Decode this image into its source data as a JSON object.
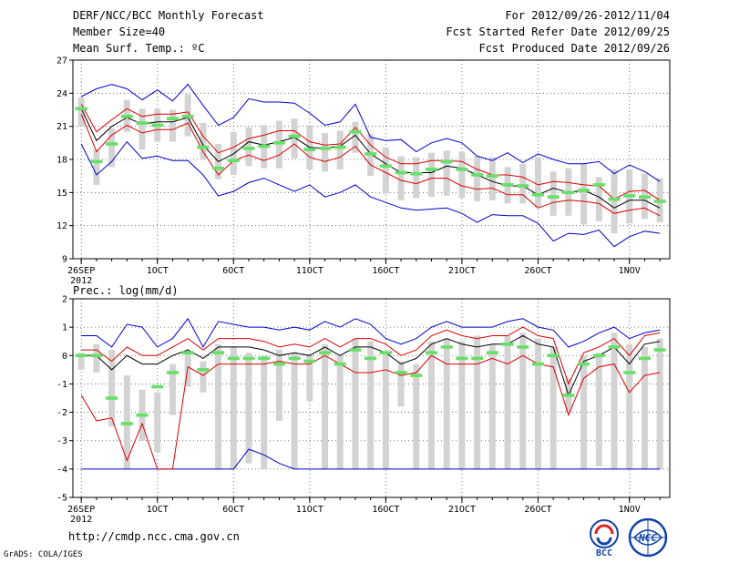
{
  "header": {
    "title": "DERF/NCC/BCC Monthly Forecast",
    "member_size": "Member Size=40",
    "variable": "Mean Surf. Temp.: ºC",
    "period": "For 2012/09/26-2012/11/04",
    "start_date": "Fcst Started Refer Date 2012/09/25",
    "produced_date": "Fcst Produced Date 2012/09/26"
  },
  "footer": {
    "url": "http://cmdp.ncc.cma.gov.cn",
    "grads": "GrADS: COLA/IGES",
    "logo_bcc_text": "BCC",
    "logo_ncc_text": "NCC"
  },
  "colors": {
    "box": "#d3d3d3",
    "median": "#66e066",
    "mean": "#000000",
    "inner": "#dd0000",
    "outer": "#0000cc",
    "grid": "#555555"
  },
  "chart_data": [
    {
      "type": "box-plume",
      "title": "Mean Surf. Temp.: ºC",
      "ylim": [
        9,
        27
      ],
      "yticks": [
        "9",
        "12",
        "15",
        "18",
        "21",
        "24",
        "27"
      ],
      "xlabels": [
        "26SEP",
        "1OCT",
        "6OCT",
        "11OCT",
        "16OCT",
        "21OCT",
        "26OCT",
        "1NOV"
      ],
      "xlabel_year": "2012",
      "mean": [
        22.6,
        19.7,
        21.0,
        21.8,
        21.2,
        21.4,
        21.4,
        21.8,
        19.3,
        17.8,
        18.5,
        19.6,
        19.3,
        19.6,
        20.0,
        19.1,
        19.0,
        19.2,
        20.2,
        18.5,
        17.6,
        16.8,
        16.8,
        16.8,
        17.4,
        17.2,
        16.6,
        16.0,
        15.6,
        15.6,
        14.8,
        15.4,
        15.0,
        15.2,
        14.6,
        13.6,
        14.3,
        14.3,
        13.6
      ],
      "upper_inner": [
        23.0,
        20.5,
        21.6,
        22.6,
        21.9,
        22.1,
        22.1,
        22.3,
        20.1,
        18.6,
        19.1,
        19.9,
        20.2,
        20.6,
        20.6,
        19.6,
        19.3,
        19.4,
        20.9,
        19.3,
        18.2,
        17.6,
        17.6,
        17.9,
        17.9,
        17.8,
        17.1,
        16.6,
        16.6,
        16.4,
        15.7,
        16.0,
        15.9,
        15.7,
        15.6,
        14.4,
        15.1,
        15.2,
        14.3
      ],
      "lower_inner": [
        22.1,
        18.7,
        20.2,
        21.1,
        20.4,
        20.7,
        20.7,
        21.3,
        18.7,
        16.6,
        17.9,
        18.4,
        17.9,
        18.4,
        19.4,
        18.2,
        17.8,
        18.2,
        19.2,
        17.5,
        16.8,
        16.1,
        15.8,
        16.3,
        16.3,
        15.6,
        15.3,
        15.4,
        14.8,
        14.8,
        13.6,
        14.1,
        14.3,
        14.2,
        14.0,
        13.1,
        13.4,
        13.6,
        12.9
      ],
      "upper_outer": [
        23.7,
        24.4,
        24.8,
        24.4,
        23.4,
        24.3,
        23.3,
        24.8,
        22.9,
        21.1,
        21.8,
        23.5,
        23.2,
        23.2,
        23.1,
        22.2,
        21.1,
        21.4,
        23.0,
        20.0,
        19.7,
        19.8,
        18.7,
        19.5,
        19.9,
        19.5,
        18.3,
        17.9,
        18.6,
        17.7,
        18.5,
        18.0,
        17.6,
        17.6,
        17.8,
        16.7,
        17.5,
        16.9,
        16.0
      ],
      "lower_outer": [
        19.4,
        16.6,
        17.8,
        19.6,
        18.1,
        18.3,
        17.9,
        17.9,
        16.6,
        14.7,
        15.1,
        15.9,
        16.3,
        15.7,
        15.1,
        15.7,
        14.6,
        15.0,
        15.7,
        14.6,
        14.1,
        13.6,
        13.4,
        13.5,
        13.6,
        13.1,
        12.3,
        13.0,
        12.9,
        12.9,
        12.2,
        10.6,
        11.3,
        11.2,
        11.6,
        10.1,
        11.0,
        11.5,
        11.3
      ],
      "box_top": [
        23.6,
        18.9,
        20.8,
        23.4,
        22.6,
        22.6,
        22.5,
        23.9,
        21.3,
        19.4,
        20.5,
        20.9,
        21.1,
        21.5,
        21.7,
        21.1,
        20.4,
        20.6,
        21.4,
        20.3,
        19.1,
        18.3,
        18.2,
        18.6,
        18.8,
        18.7,
        18.3,
        18.2,
        17.3,
        17.6,
        18.2,
        16.9,
        17.2,
        17.6,
        16.4,
        17.1,
        17.1,
        16.7,
        16.3
      ],
      "box_bottom": [
        21.0,
        15.7,
        17.3,
        20.5,
        18.9,
        19.6,
        19.6,
        20.1,
        18.0,
        16.2,
        16.6,
        17.4,
        17.2,
        17.2,
        18.1,
        17.1,
        16.9,
        17.1,
        18.6,
        16.5,
        14.9,
        14.3,
        14.5,
        14.6,
        14.7,
        14.5,
        14.2,
        14.3,
        14.0,
        14.0,
        13.6,
        12.9,
        12.9,
        12.1,
        12.4,
        11.3,
        12.2,
        12.6,
        12.3
      ],
      "median": [
        22.6,
        17.8,
        19.4,
        21.9,
        21.3,
        21.1,
        21.7,
        21.9,
        19.1,
        17.2,
        17.9,
        19.0,
        19.2,
        19.5,
        20.1,
        18.9,
        19.0,
        19.1,
        20.5,
        18.5,
        17.4,
        16.8,
        16.7,
        17.1,
        17.8,
        17.1,
        16.6,
        16.5,
        15.7,
        15.6,
        14.8,
        14.6,
        15.0,
        15.2,
        15.7,
        14.4,
        14.7,
        14.6,
        14.2
      ]
    },
    {
      "type": "box-plume",
      "title": "Prec.: log(mm/d)",
      "ylim": [
        -5,
        2
      ],
      "yticks": [
        "-5",
        "-4",
        "-3",
        "-2",
        "-1",
        "0",
        "1",
        "2"
      ],
      "xlabels": [
        "26SEP",
        "1OCT",
        "6OCT",
        "11OCT",
        "16OCT",
        "21OCT",
        "26OCT",
        "1NOV"
      ],
      "xlabel_year": "2012",
      "mean": [
        0.0,
        0.0,
        -0.5,
        0.0,
        -0.3,
        -0.3,
        0.0,
        0.2,
        -0.1,
        0.3,
        0.3,
        0.3,
        0.2,
        0.0,
        0.1,
        0.0,
        0.3,
        0.0,
        0.3,
        0.3,
        0.1,
        -0.3,
        -0.1,
        0.4,
        0.6,
        0.4,
        0.3,
        0.4,
        0.4,
        0.7,
        0.4,
        0.3,
        -1.4,
        -0.2,
        0.0,
        0.3,
        -0.3,
        0.4,
        0.5
      ],
      "upper_inner": [
        0.2,
        0.2,
        -0.2,
        0.3,
        0.0,
        0.0,
        0.3,
        0.6,
        0.2,
        0.6,
        0.6,
        0.6,
        0.5,
        0.3,
        0.4,
        0.3,
        0.6,
        0.3,
        0.6,
        0.6,
        0.4,
        0.0,
        0.2,
        0.7,
        0.9,
        0.7,
        0.6,
        0.7,
        0.7,
        1.0,
        0.7,
        0.6,
        -1.0,
        0.1,
        0.3,
        0.6,
        0.0,
        0.7,
        0.8
      ],
      "lower_inner": [
        -1.4,
        -2.3,
        -2.2,
        -3.7,
        -2.4,
        -4.0,
        -4.0,
        -0.4,
        -0.7,
        -0.3,
        -0.3,
        -0.3,
        -0.3,
        -0.2,
        -0.3,
        -0.3,
        0.0,
        -0.3,
        -0.6,
        -0.6,
        -0.5,
        -0.7,
        -0.6,
        0.0,
        -0.3,
        -0.3,
        -0.3,
        -0.1,
        -0.3,
        0.0,
        -0.3,
        -0.4,
        -2.1,
        -0.8,
        -0.4,
        -0.3,
        -1.3,
        -0.7,
        -0.6
      ],
      "upper_outer": [
        0.7,
        0.7,
        0.3,
        1.1,
        1.0,
        0.3,
        0.6,
        1.3,
        0.3,
        1.2,
        1.1,
        1.0,
        1.0,
        0.9,
        1.0,
        0.9,
        1.2,
        1.0,
        1.3,
        1.1,
        0.6,
        0.4,
        0.6,
        1.0,
        1.2,
        1.0,
        1.0,
        1.0,
        1.2,
        1.3,
        1.0,
        0.9,
        0.3,
        0.5,
        0.8,
        1.0,
        0.6,
        0.8,
        0.9
      ],
      "lower_outer": [
        -4.0,
        -4.0,
        -4.0,
        -4.0,
        -4.0,
        -4.0,
        -4.0,
        -4.0,
        -4.0,
        -4.0,
        -4.0,
        -3.3,
        -3.5,
        -3.8,
        -4.0,
        -4.0,
        -4.0,
        -4.0,
        -4.0,
        -4.0,
        -4.0,
        -4.0,
        -4.0,
        -4.0,
        -4.0,
        -4.0,
        -4.0,
        -4.0,
        -4.0,
        -4.0,
        -4.0,
        -4.0,
        -4.0,
        -4.0,
        -4.0,
        -4.0,
        -4.0,
        -4.0,
        -4.0
      ],
      "box_top": [
        0.1,
        0.4,
        0.2,
        -0.7,
        -1.2,
        -1.3,
        -0.3,
        0.1,
        -0.2,
        0.4,
        0.3,
        0.1,
        0.0,
        0.2,
        0.1,
        0.0,
        0.4,
        0.0,
        0.6,
        0.5,
        0.1,
        -0.2,
        -0.3,
        0.5,
        0.6,
        0.5,
        0.7,
        0.4,
        0.7,
        0.8,
        0.6,
        0.3,
        -0.8,
        0.0,
        0.1,
        0.8,
        0.4,
        0.3,
        0.6
      ],
      "box_bottom": [
        -0.5,
        -0.6,
        -2.5,
        -4.0,
        -3.0,
        -3.4,
        -2.1,
        -1.1,
        -1.3,
        -4.0,
        -4.0,
        -3.8,
        -4.0,
        -2.3,
        -4.0,
        -1.6,
        -4.0,
        -4.0,
        -4.0,
        -4.0,
        -4.0,
        -1.8,
        -4.0,
        -4.0,
        -4.0,
        -4.0,
        -4.0,
        -4.0,
        -4.0,
        -4.0,
        -4.0,
        -4.0,
        -2.0,
        -4.0,
        -3.9,
        -4.0,
        -4.0,
        -4.0,
        -4.0
      ],
      "median": [
        0.0,
        0.0,
        -1.5,
        -2.4,
        -2.1,
        -1.1,
        -0.6,
        0.1,
        -0.5,
        0.1,
        -0.1,
        -0.1,
        -0.1,
        -0.3,
        -0.1,
        -0.2,
        0.1,
        -0.3,
        0.2,
        -0.1,
        0.1,
        -0.6,
        -0.7,
        0.1,
        0.3,
        -0.1,
        -0.1,
        0.1,
        0.4,
        0.3,
        -0.3,
        0.0,
        -1.4,
        -0.3,
        0.0,
        0.3,
        -0.6,
        -0.1,
        0.2
      ]
    }
  ]
}
